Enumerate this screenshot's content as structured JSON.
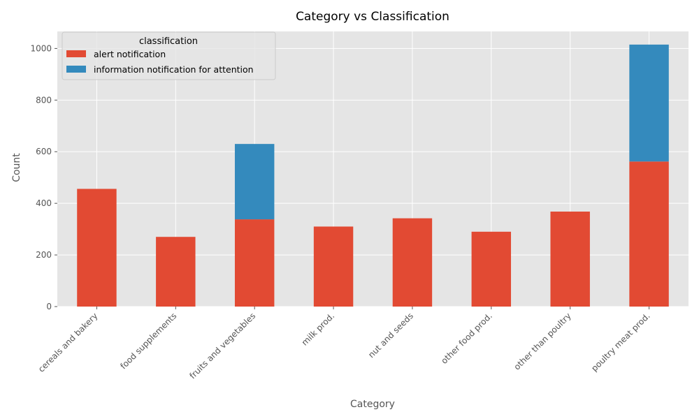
{
  "chart_data": {
    "type": "bar",
    "stacked": true,
    "title": "Category vs Classification",
    "xlabel": "Category",
    "ylabel": "Count",
    "categories": [
      "cereals and bakery",
      "food supplements",
      "fruits and vegetables",
      "milk prod.",
      "nut and seeds",
      "other food prod.",
      "other than poultry",
      "poultry meat prod."
    ],
    "series": [
      {
        "name": "alert notification",
        "color": "#E24A33",
        "values": [
          456,
          270,
          338,
          310,
          342,
          290,
          368,
          562
        ]
      },
      {
        "name": "information notification for attention",
        "color": "#348ABD",
        "values": [
          0,
          0,
          292,
          0,
          0,
          0,
          0,
          453
        ]
      }
    ],
    "ylim": [
      0,
      1066
    ],
    "yticks": [
      0,
      200,
      400,
      600,
      800,
      1000
    ],
    "legend": {
      "title": "classification",
      "position": "top-left"
    },
    "grid": true,
    "style": {
      "plot_background": "#E5E5E5",
      "grid_color": "#FFFFFF"
    }
  }
}
